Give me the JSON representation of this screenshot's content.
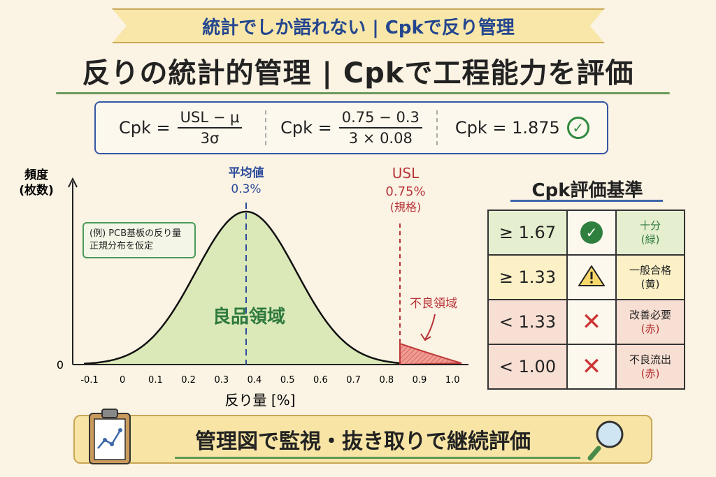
{
  "ribbon": "統計でしか語れない | Cpkで反り管理",
  "title": "反りの統計的管理 | Cpkで工程能力を評価",
  "formula": {
    "f1": {
      "lhs": "Cpk =",
      "num": "USL − μ",
      "den": "3σ"
    },
    "f2": {
      "lhs": "Cpk =",
      "num": "0.75 − 0.3",
      "den": "3 × 0.08"
    },
    "f3": "Cpk = 1.875",
    "icon": "check-circle-icon"
  },
  "chart_data": {
    "type": "line",
    "title": "",
    "xlabel": "反り量 [%]",
    "ylabel_line1": "頻度",
    "ylabel_line2": "(枚数)",
    "y_zero_label": "0",
    "x_ticks": [
      "-0.1",
      "0",
      "0.1",
      "0.2",
      "0.3",
      "0.4",
      "0.5",
      "0.6",
      "0.7",
      "0.8",
      "0.9",
      "1.0"
    ],
    "xlim": [
      -0.1,
      1.05
    ],
    "distribution": "normal",
    "mean_marker": {
      "label": "平均値",
      "value_label": "0.3%"
    },
    "usl_marker": {
      "label": "USL",
      "value_label": "0.75%",
      "sub": "(規格)"
    },
    "good_region": "良品領域",
    "bad_region": "不良領域",
    "note_line1": "(例) PCB基板の反り量",
    "note_line2": "正規分布を仮定",
    "colors": {
      "good": "#dbe9b8",
      "bad": "#e47a72",
      "mean": "#2b4a9a",
      "usl": "#b8343a"
    }
  },
  "criteria": {
    "title": "Cpk評価基準",
    "rows": [
      {
        "value": "≥ 1.67",
        "icon": "check-icon",
        "label": "十分",
        "sub": "(緑)"
      },
      {
        "value": "≥ 1.33",
        "icon": "warning-icon",
        "label": "一般合格",
        "sub": "(黄)"
      },
      {
        "value": "< 1.33",
        "icon": "x-icon",
        "label": "改善必要",
        "sub": "(赤)"
      },
      {
        "value": "< 1.00",
        "icon": "x-icon",
        "label": "不良流出",
        "sub": "(赤)"
      }
    ]
  },
  "bottom": "管理図で監視・抜き取りで継続評価"
}
